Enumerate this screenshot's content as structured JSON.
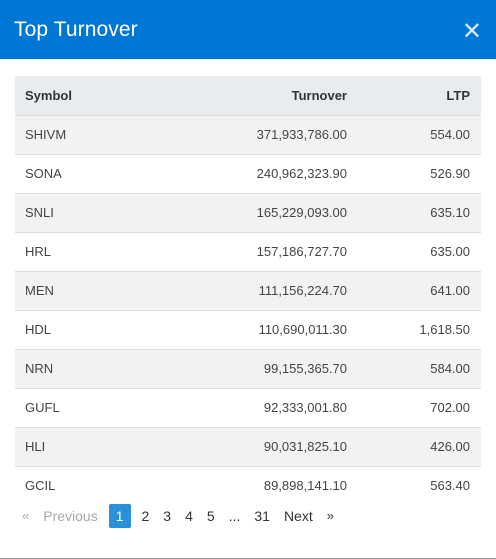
{
  "modal": {
    "title": "Top Turnover",
    "close_glyph": "✕",
    "close_icon": "close-icon"
  },
  "table": {
    "headers": {
      "symbol": "Symbol",
      "turnover": "Turnover",
      "ltp": "LTP"
    },
    "rows": [
      {
        "symbol": "SHIVM",
        "turnover": "371,933,786.00",
        "ltp": "554.00"
      },
      {
        "symbol": "SONA",
        "turnover": "240,962,323.90",
        "ltp": "526.90"
      },
      {
        "symbol": "SNLI",
        "turnover": "165,229,093.00",
        "ltp": "635.10"
      },
      {
        "symbol": "HRL",
        "turnover": "157,186,727.70",
        "ltp": "635.00"
      },
      {
        "symbol": "MEN",
        "turnover": "111,156,224.70",
        "ltp": "641.00"
      },
      {
        "symbol": "HDL",
        "turnover": "110,690,011.30",
        "ltp": "1,618.50"
      },
      {
        "symbol": "NRN",
        "turnover": "99,155,365.70",
        "ltp": "584.00"
      },
      {
        "symbol": "GUFL",
        "turnover": "92,333,001.80",
        "ltp": "702.00"
      },
      {
        "symbol": "HLI",
        "turnover": "90,031,825.10",
        "ltp": "426.00"
      },
      {
        "symbol": "GCIL",
        "turnover": "89,898,141.10",
        "ltp": "563.40"
      }
    ]
  },
  "pagination": {
    "prev_arrow": "«",
    "prev_label": "Previous",
    "pages": [
      "1",
      "2",
      "3",
      "4",
      "5"
    ],
    "ellipsis": "...",
    "last_page": "31",
    "next_label": "Next",
    "next_arrow": "»",
    "current": "1"
  },
  "colors": {
    "header_bg": "#0077d4",
    "active_page": "#2a90d8",
    "table_head_bg": "#e9ecef"
  }
}
